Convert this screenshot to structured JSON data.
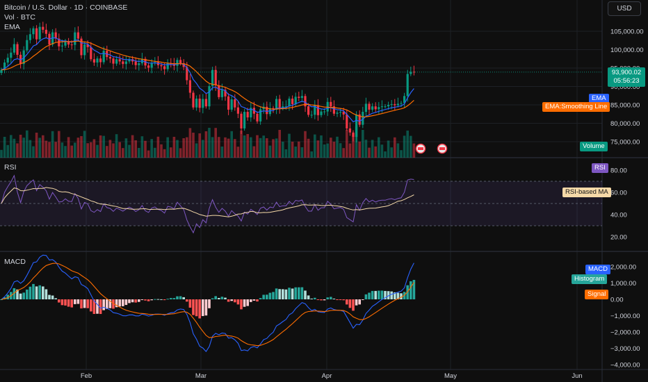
{
  "header": {
    "symbol": "Bitcoin / U.S. Dollar · 1D · COINBASE",
    "volume_label": "Vol · BTC",
    "ema_label": "EMA",
    "rsi_label": "RSI",
    "macd_label": "MACD"
  },
  "currency": "USD",
  "last_price": {
    "price": "93,900.02",
    "countdown": "05:56:23"
  },
  "tags": {
    "ema": "EMA",
    "ema_smooth": "EMA:Smoothing Line",
    "volume": "Volume",
    "rsi": "RSI",
    "rsi_ma": "RSI-based MA",
    "macd": "MACD",
    "histogram": "Histogram",
    "signal": "Signal"
  },
  "colors": {
    "up": "#089981",
    "down": "#f23645",
    "ema": "#2962ff",
    "ema_smooth": "#ff6d00",
    "rsi": "#7e57c2",
    "rsi_ma": "#f5d9a8",
    "macd": "#2962ff",
    "signal": "#ff6d00",
    "hist_up_strong": "#26a69a",
    "hist_up_weak": "#b2dfdb",
    "hist_down_strong": "#ff5252",
    "hist_down_weak": "#ffcdd2"
  },
  "chart_data": [
    {
      "type": "candlestick",
      "title": "Bitcoin / U.S. Dollar · 1D · COINBASE",
      "x_labels": [
        "Feb",
        "Mar",
        "Apr",
        "May",
        "Jun"
      ],
      "y_ticks": [
        "105,000.00",
        "100,000.00",
        "95,000.00",
        "90,000.00",
        "85,000.00",
        "80,000.00",
        "75,000.00"
      ],
      "ylim": [
        73000,
        108000
      ],
      "last_price": 93900.02,
      "closes": [
        94500,
        96500,
        97800,
        99200,
        101500,
        98600,
        96100,
        99800,
        102600,
        104200,
        105800,
        102800,
        106200,
        105400,
        104300,
        101400,
        104700,
        103000,
        100900,
        101100,
        102300,
        101400,
        101300,
        104700,
        103000,
        98500,
        101400,
        100700,
        97400,
        96500,
        97600,
        96600,
        99700,
        98000,
        97600,
        96200,
        97400,
        96800,
        96100,
        96800,
        97400,
        96800,
        95800,
        96300,
        97500,
        95700,
        95100,
        96300,
        96600,
        95800,
        95500,
        94700,
        96300,
        96100,
        95600,
        97200,
        96300,
        95300,
        91700,
        88300,
        84300,
        86700,
        84200,
        86600,
        84600,
        90100,
        94500,
        90300,
        87100,
        89100,
        87300,
        83700,
        86500,
        84300,
        82600,
        78600,
        83100,
        81600,
        84200,
        82600,
        80500,
        83800,
        84500,
        82500,
        84100,
        83700,
        86600,
        84100,
        84600,
        84600,
        86700,
        85200,
        87200,
        86900,
        87400,
        84600,
        82300,
        82300,
        84900,
        82200,
        83200,
        83200,
        85800,
        84600,
        82600,
        82900,
        83100,
        82400,
        78600,
        77500,
        76300,
        82400,
        79600,
        83100,
        85300,
        83700,
        84600,
        83800,
        84400,
        84600,
        84600,
        85000,
        85200,
        84900,
        85300,
        85500,
        87400,
        93400,
        94000,
        93900
      ],
      "ema_last": 86600,
      "ema_smoothing_last": 85700
    },
    {
      "type": "line",
      "title": "RSI",
      "y_ticks": [
        "80.00",
        "60.00",
        "40.00",
        "20.00"
      ],
      "ylim": [
        16,
        88
      ],
      "bands": [
        70,
        50,
        30
      ],
      "series": [
        {
          "name": "RSI",
          "last": 81
        },
        {
          "name": "RSI-based MA",
          "last": 60
        }
      ]
    },
    {
      "type": "bar",
      "title": "MACD",
      "y_ticks": [
        "2,000.00",
        "1,000.00",
        "0.00",
        "−1,000.00",
        "−2,000.00",
        "−3,000.00",
        "−4,000.00"
      ],
      "ylim": [
        -4300,
        2300
      ],
      "series": [
        {
          "name": "MACD",
          "last": 1650
        },
        {
          "name": "Signal",
          "last": 760
        },
        {
          "name": "Histogram",
          "last": 890
        }
      ]
    }
  ]
}
